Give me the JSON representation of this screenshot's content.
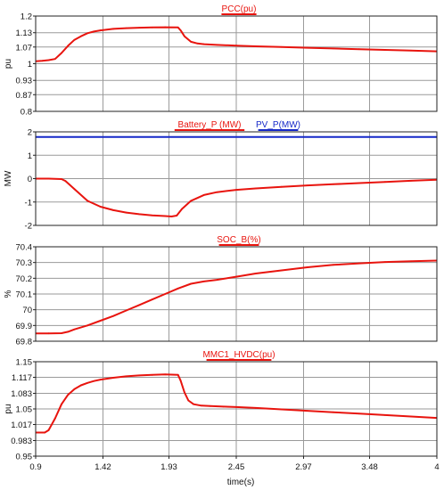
{
  "colors": {
    "series_red": "#e8140e",
    "series_blue": "#1528c8",
    "grid": "#9a9a9a",
    "frame": "#222222"
  },
  "xaxis": {
    "label": "time(s)",
    "range": [
      0.9,
      4.0
    ],
    "ticks": [
      0.9,
      1.42,
      1.93,
      2.45,
      2.97,
      3.48,
      4.0
    ],
    "tick_labels": [
      "0.9",
      "1.42",
      "1.93",
      "2.45",
      "2.97",
      "3.48",
      "4"
    ]
  },
  "chart_data": [
    {
      "type": "line",
      "ylabel": "pu",
      "ylim": [
        0.8,
        1.2
      ],
      "yticks": [
        0.8,
        0.87,
        0.93,
        1.0,
        1.07,
        1.13,
        1.2
      ],
      "ytick_labels": [
        "0.8",
        "0.87",
        "0.93",
        "1",
        "1.07",
        "1.13",
        "1.2"
      ],
      "grid": true,
      "series": [
        {
          "name": "PCC(pu)",
          "color": "#e8140e",
          "x": [
            0.9,
            0.95,
            1.0,
            1.05,
            1.1,
            1.15,
            1.2,
            1.25,
            1.3,
            1.35,
            1.4,
            1.5,
            1.6,
            1.7,
            1.8,
            1.9,
            2.0,
            2.02,
            2.05,
            2.1,
            2.15,
            2.2,
            2.3,
            2.45,
            2.6,
            2.8,
            3.0,
            3.2,
            3.4,
            3.6,
            3.8,
            4.0
          ],
          "y": [
            1.01,
            1.012,
            1.015,
            1.02,
            1.045,
            1.075,
            1.1,
            1.115,
            1.128,
            1.135,
            1.14,
            1.146,
            1.149,
            1.151,
            1.152,
            1.153,
            1.152,
            1.14,
            1.115,
            1.092,
            1.085,
            1.082,
            1.079,
            1.076,
            1.073,
            1.07,
            1.067,
            1.064,
            1.061,
            1.058,
            1.055,
            1.052
          ]
        }
      ]
    },
    {
      "type": "line",
      "ylabel": "MW",
      "ylim": [
        -2,
        2
      ],
      "yticks": [
        -2,
        -1,
        0,
        1,
        2
      ],
      "ytick_labels": [
        "-2",
        "-1",
        "0",
        "1",
        "2"
      ],
      "grid": true,
      "series": [
        {
          "name": "Battery_P (MW)",
          "color": "#e8140e",
          "x": [
            0.9,
            1.0,
            1.1,
            1.13,
            1.2,
            1.3,
            1.4,
            1.5,
            1.6,
            1.7,
            1.8,
            1.9,
            1.95,
            1.99,
            2.03,
            2.1,
            2.2,
            2.3,
            2.45,
            2.6,
            2.8,
            3.0,
            3.2,
            3.4,
            3.6,
            3.8,
            4.0
          ],
          "y": [
            0.0,
            0.0,
            -0.02,
            -0.1,
            -0.45,
            -0.95,
            -1.2,
            -1.35,
            -1.45,
            -1.52,
            -1.57,
            -1.6,
            -1.62,
            -1.58,
            -1.3,
            -0.95,
            -0.7,
            -0.58,
            -0.48,
            -0.42,
            -0.35,
            -0.29,
            -0.24,
            -0.19,
            -0.14,
            -0.09,
            -0.05
          ]
        },
        {
          "name": "PV_P(MW)",
          "color": "#1528c8",
          "x": [
            0.9,
            4.0
          ],
          "y": [
            1.78,
            1.78
          ]
        }
      ]
    },
    {
      "type": "line",
      "ylabel": "%",
      "ylim": [
        69.8,
        70.4
      ],
      "yticks": [
        69.8,
        69.9,
        70.0,
        70.1,
        70.2,
        70.3,
        70.4
      ],
      "ytick_labels": [
        "69.8",
        "69.9",
        "70",
        "70.1",
        "70.2",
        "70.3",
        "70.4"
      ],
      "grid": true,
      "series": [
        {
          "name": "SOC_B(%)",
          "color": "#e8140e",
          "x": [
            0.9,
            1.0,
            1.1,
            1.15,
            1.2,
            1.3,
            1.4,
            1.5,
            1.6,
            1.7,
            1.8,
            1.9,
            2.0,
            2.1,
            2.2,
            2.3,
            2.45,
            2.6,
            2.8,
            3.0,
            3.2,
            3.4,
            3.6,
            3.8,
            4.0
          ],
          "y": [
            69.85,
            69.85,
            69.851,
            69.86,
            69.875,
            69.9,
            69.93,
            69.96,
            69.995,
            70.03,
            70.065,
            70.1,
            70.135,
            70.165,
            70.18,
            70.19,
            70.21,
            70.23,
            70.25,
            70.27,
            70.285,
            70.295,
            70.303,
            70.308,
            70.312
          ]
        }
      ]
    },
    {
      "type": "line",
      "ylabel": "pu",
      "ylim": [
        0.95,
        1.15
      ],
      "yticks": [
        0.95,
        0.983,
        1.017,
        1.05,
        1.083,
        1.117,
        1.15
      ],
      "ytick_labels": [
        "0.95",
        "0.983",
        "1.017",
        "1.05",
        "1.083",
        "1.117",
        "1.15"
      ],
      "grid": true,
      "series": [
        {
          "name": "MMC1_HVDC(pu)",
          "color": "#e8140e",
          "x": [
            0.9,
            0.97,
            1.0,
            1.05,
            1.1,
            1.15,
            1.2,
            1.25,
            1.3,
            1.35,
            1.4,
            1.5,
            1.6,
            1.7,
            1.8,
            1.9,
            2.0,
            2.02,
            2.05,
            2.08,
            2.12,
            2.18,
            2.25,
            2.35,
            2.45,
            2.6,
            2.8,
            3.0,
            3.2,
            3.4,
            3.6,
            3.8,
            4.0
          ],
          "y": [
            1.0,
            1.0,
            1.005,
            1.03,
            1.06,
            1.08,
            1.092,
            1.1,
            1.105,
            1.109,
            1.112,
            1.116,
            1.119,
            1.121,
            1.122,
            1.123,
            1.122,
            1.11,
            1.085,
            1.068,
            1.06,
            1.057,
            1.056,
            1.055,
            1.054,
            1.052,
            1.049,
            1.046,
            1.043,
            1.04,
            1.037,
            1.034,
            1.031
          ]
        }
      ]
    }
  ]
}
